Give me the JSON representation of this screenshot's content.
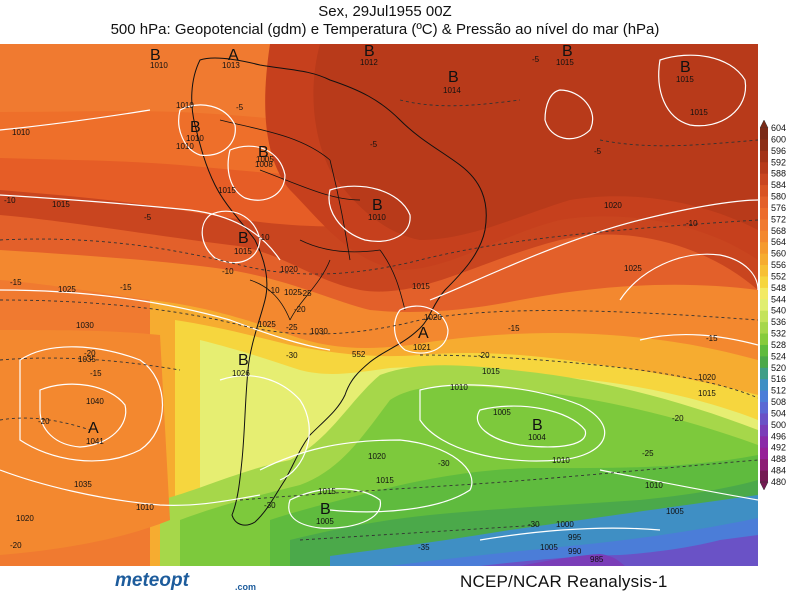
{
  "header": {
    "date_line": "Sex, 29Jul1955 00Z",
    "title_line": "500 hPa: Geopotencial (gdm) e Temperatura (ºC) & Pressão ao nível do mar (hPa)"
  },
  "footer": {
    "logo": "meteopt",
    "logo_suffix": ".com",
    "source": "NCEP/NCAR Reanalysis-1"
  },
  "colors": {
    "ocean_bg": "#f0641e",
    "outline": "#111111",
    "isobar": "#ffffff",
    "isotherm": "#333333"
  },
  "colorbar": {
    "min": 480,
    "max": 604,
    "step": 4,
    "labels": [
      "604",
      "600",
      "596",
      "592",
      "588",
      "584",
      "580",
      "576",
      "572",
      "568",
      "564",
      "560",
      "556",
      "552",
      "548",
      "544",
      "540",
      "536",
      "532",
      "528",
      "524",
      "520",
      "516",
      "512",
      "508",
      "504",
      "500",
      "496",
      "492",
      "488",
      "484",
      "480"
    ],
    "colors": [
      "#7a2a17",
      "#8c2e16",
      "#a33317",
      "#b73a1a",
      "#c9451f",
      "#d85323",
      "#e3602a",
      "#ec6c2c",
      "#f07a30",
      "#f3882f",
      "#f59a2e",
      "#f6ac30",
      "#f7c034",
      "#f6d63e",
      "#f3ea63",
      "#e0ee70",
      "#c4e35a",
      "#a6d74a",
      "#86cb3c",
      "#5fbb3e",
      "#4ba94a",
      "#3f9e86",
      "#3f8fc4",
      "#4b7dd8",
      "#5a68d4",
      "#6a52c6",
      "#7a3db8",
      "#8a2aa8",
      "#962098",
      "#8c1d74",
      "#741a52"
    ]
  },
  "map": {
    "pressure_centers": [
      {
        "type": "B",
        "value": "1010"
      },
      {
        "type": "A",
        "value": "1013"
      },
      {
        "type": "B",
        "value": "1012"
      },
      {
        "type": "B",
        "value": "1015"
      },
      {
        "type": "B",
        "value": "1014"
      },
      {
        "type": "B",
        "value": "1015"
      },
      {
        "type": "B",
        "value": "1010"
      },
      {
        "type": "B",
        "value": "1008"
      },
      {
        "type": "B",
        "value": "1010"
      },
      {
        "type": "B",
        "value": "1015"
      },
      {
        "type": "B",
        "value": "1026"
      },
      {
        "type": "A",
        "value": "1021"
      },
      {
        "type": "A",
        "value": "1041"
      },
      {
        "type": "B",
        "value": "1004"
      },
      {
        "type": "B",
        "value": "1005"
      }
    ],
    "isobar_labels": [
      "1010",
      "1015",
      "1010",
      "1020",
      "1025",
      "1030",
      "1035",
      "1040",
      "1015",
      "1025",
      "1030",
      "1035",
      "1020",
      "1025",
      "1020",
      "1015",
      "1010",
      "1005",
      "1025",
      "1020",
      "1015",
      "1010",
      "1005",
      "1015",
      "1020",
      "1015",
      "1010",
      "1005",
      "1000",
      "995",
      "990",
      "1020",
      "1015",
      "1010",
      "1005",
      "1015",
      "985",
      "1010"
    ],
    "isotherm_labels": [
      "-5",
      "-5",
      "-5",
      "-5",
      "-5",
      "-10",
      "-10",
      "-15",
      "-10",
      "-15",
      "-20",
      "-20",
      "-25",
      "-30",
      "-20",
      "-20",
      "-25",
      "-30",
      "-30",
      "-35",
      "-20",
      "-15",
      "-10",
      "-15",
      "-20",
      "-25",
      "-30",
      "-15",
      "-10"
    ],
    "contour_552": "552"
  }
}
